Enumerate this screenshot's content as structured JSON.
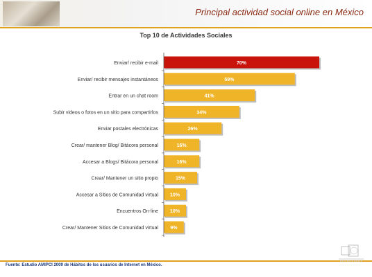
{
  "header": {
    "title": "Principal actividad social online en México"
  },
  "footer": {
    "source": "Fuente: Estudio AMIPCI 2009 de Hábitos de los usuarios de Internet en México."
  },
  "colors": {
    "accent": "#e0a21e",
    "bar": "#f0b429",
    "bar_highlight": "#c8140a",
    "title": "#8a2a14"
  },
  "chart_data": {
    "type": "bar",
    "orientation": "horizontal",
    "title": "Top 10 de Actividades Sociales",
    "categories": [
      "Enviar/ recibir e-mail",
      "Enviar/ recibir mensajes instantáneos",
      "Entrar en un chat room",
      "Subir videos o fotos en un sitio para compartirlos",
      "Enviar postales electrónicas",
      "Crear/ mantener Blog/ Bitácora personal",
      "Accesar a Blogs/ Bitácora personal",
      "Crear/ Mantener un sitio propio",
      "Accesar a Sitios de Comunidad virtual",
      "Encuentros On-line",
      "Crear/ Mantener Sitios de Comunidad virtual"
    ],
    "values": [
      70,
      59,
      41,
      34,
      26,
      16,
      16,
      15,
      10,
      10,
      9
    ],
    "value_labels": [
      "70%",
      "59%",
      "41%",
      "34%",
      "26%",
      "16%",
      "16%",
      "15%",
      "10%",
      "10%",
      "9%"
    ],
    "highlight_index": 0,
    "xlim": [
      0,
      70
    ],
    "grid": false,
    "legend": false
  }
}
